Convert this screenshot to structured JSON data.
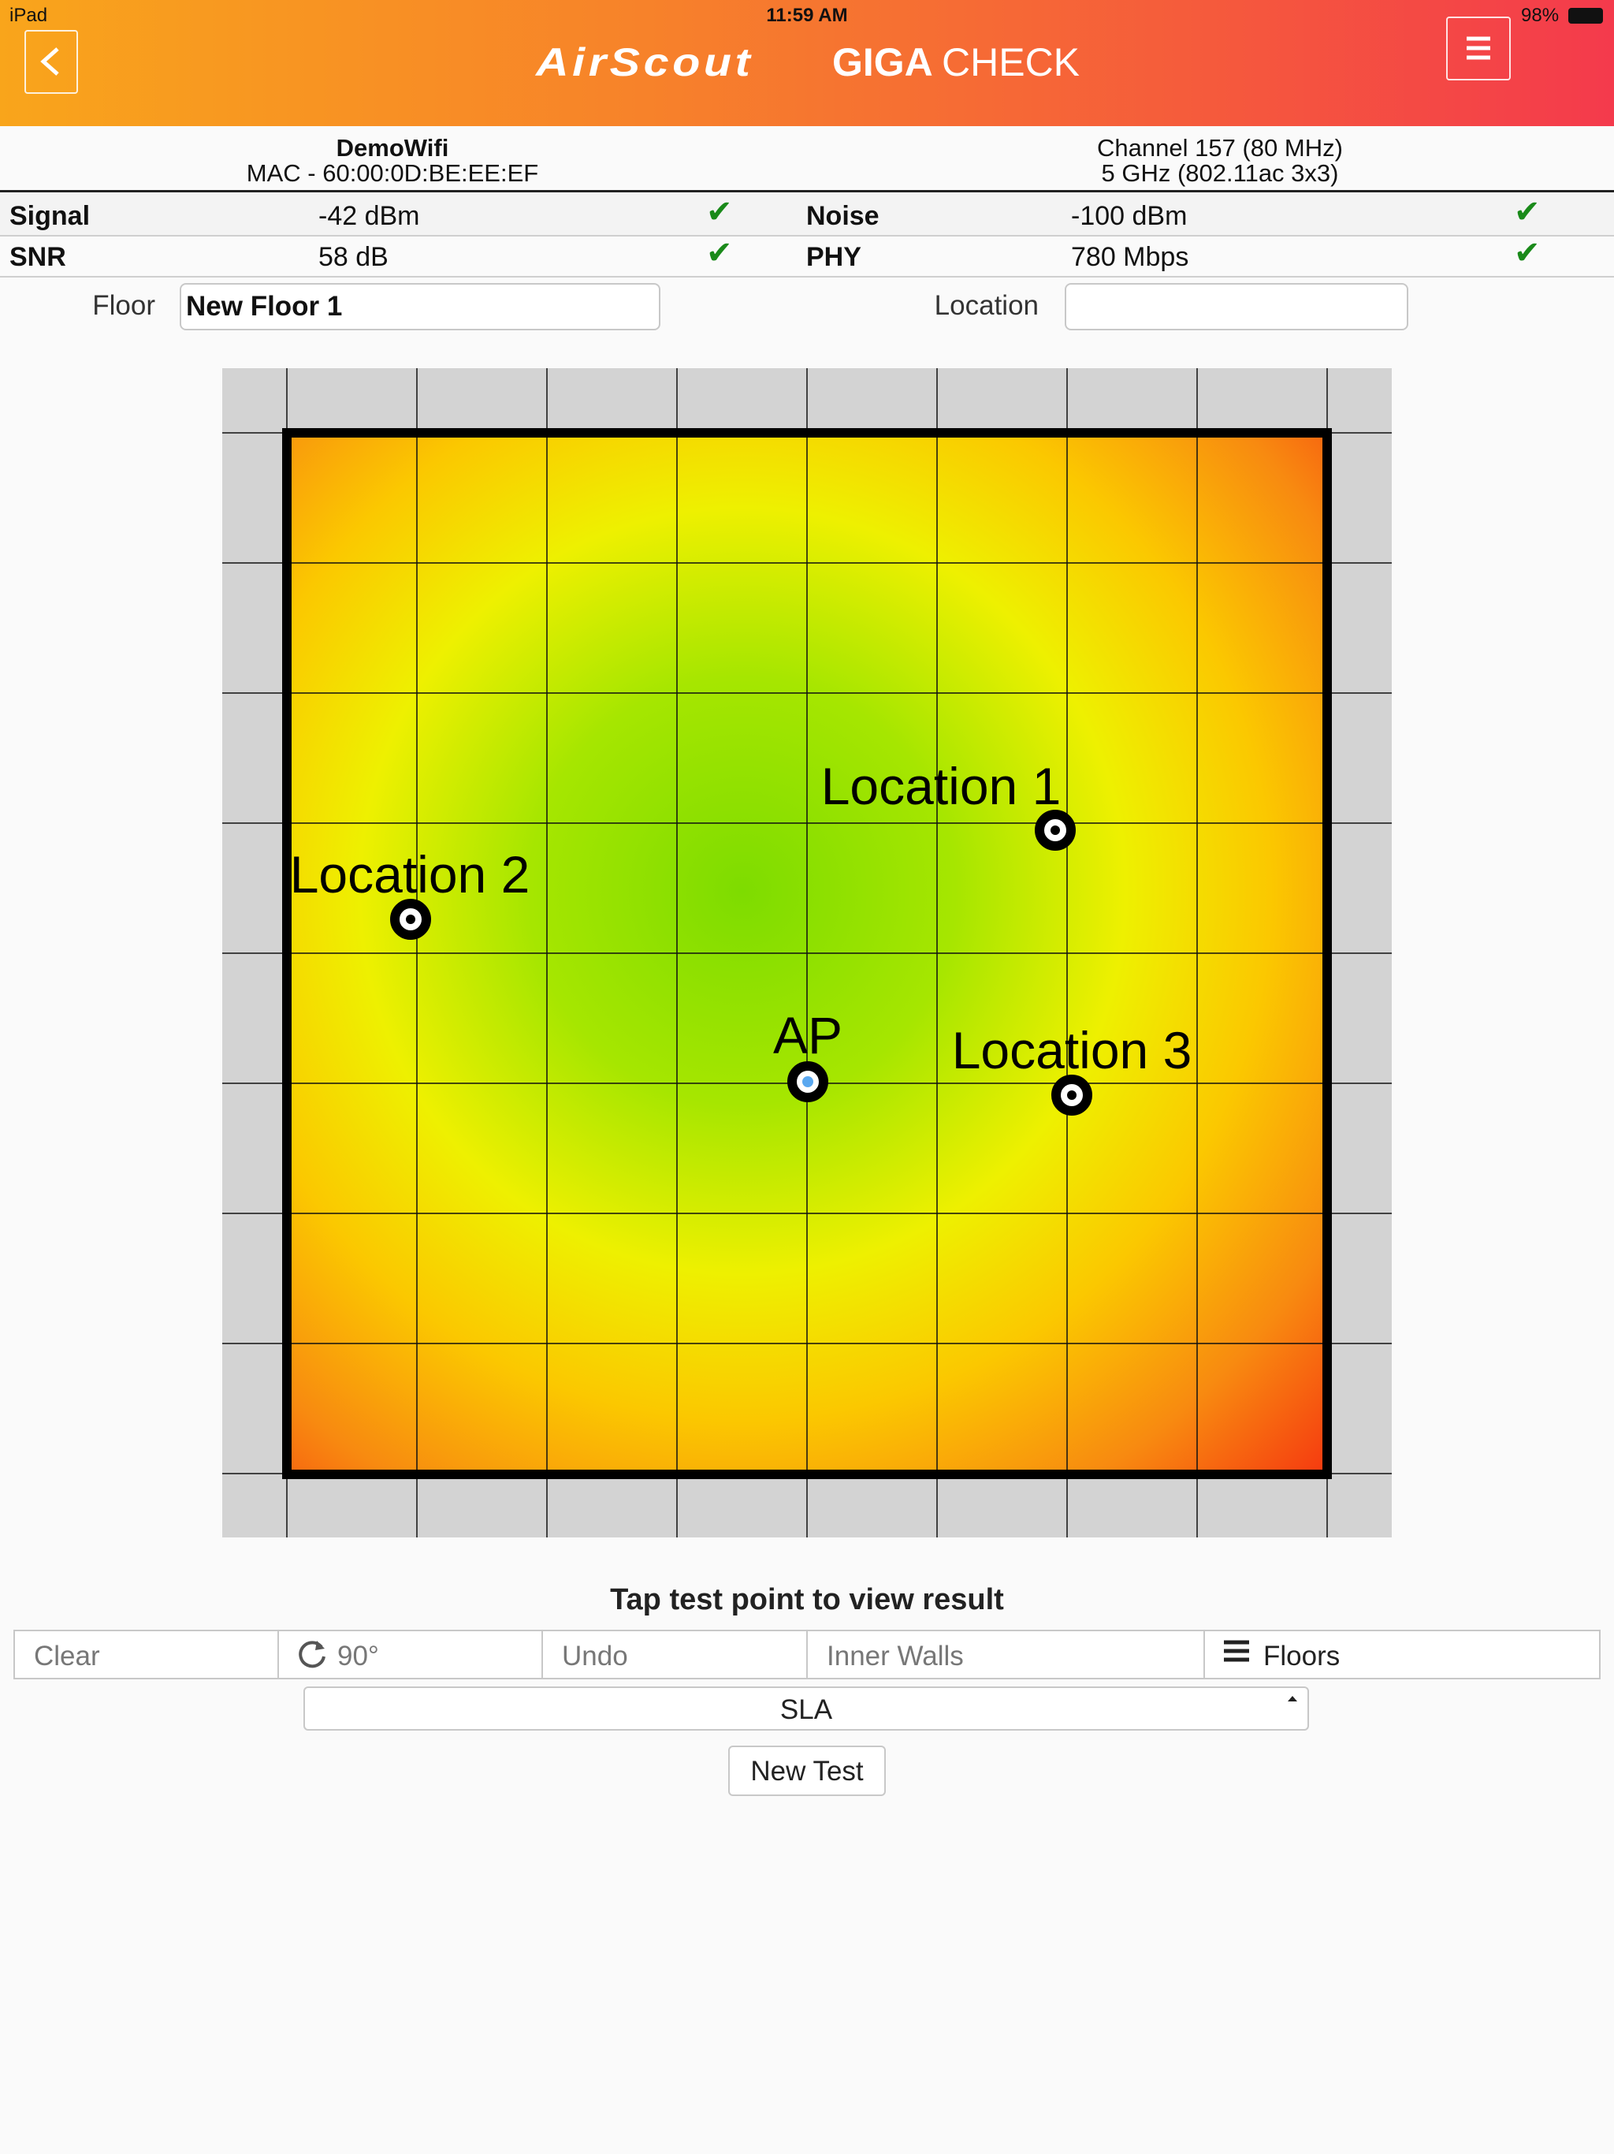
{
  "status_bar": {
    "device": "iPad",
    "time": "11:59 AM",
    "battery": "98%"
  },
  "header": {
    "brand": "AirScout",
    "product_bold": "GIGA",
    "product_light": "CHECK"
  },
  "network": {
    "ssid": "DemoWifi",
    "mac": "MAC - 60:00:0D:BE:EE:EF",
    "channel": "Channel 157 (80 MHz)",
    "band": "5 GHz (802.11ac 3x3)"
  },
  "metrics": [
    {
      "label": "Signal",
      "value": "-42 dBm"
    },
    {
      "label": "Noise",
      "value": "-100 dBm"
    },
    {
      "label": "SNR",
      "value": "58 dB"
    },
    {
      "label": "PHY",
      "value": "780 Mbps"
    }
  ],
  "floor": {
    "floor_label": "Floor",
    "floor_value": "New Floor 1",
    "location_label": "Location"
  },
  "map": {
    "points": [
      {
        "label": "Location 1"
      },
      {
        "label": "Location 2"
      },
      {
        "label": "AP"
      },
      {
        "label": "Location 3"
      }
    ]
  },
  "instruction": "Tap test point to view result",
  "toolbar": [
    "Clear",
    "90°",
    "Undo",
    "Inner Walls",
    "Floors"
  ],
  "sla": "SLA",
  "new_test": "New Test"
}
